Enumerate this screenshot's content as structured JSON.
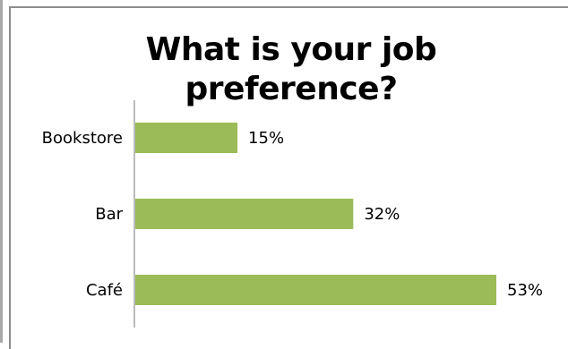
{
  "chart_data": {
    "type": "bar",
    "orientation": "horizontal",
    "title": "What is your job preference?",
    "categories": [
      "Bookstore",
      "Bar",
      "Café"
    ],
    "values": [
      15,
      32,
      53
    ],
    "value_labels": [
      "15%",
      "32%",
      "53%"
    ],
    "xlim": [
      0,
      53
    ],
    "grid": false,
    "legend": "none",
    "bar_color": "#9bbb59"
  }
}
